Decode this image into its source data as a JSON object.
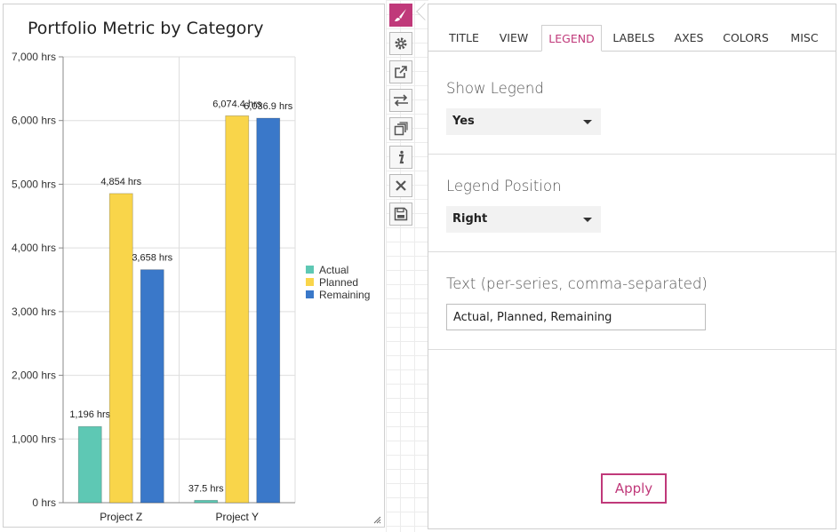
{
  "chart_data": {
    "type": "bar",
    "title": "Portfolio Metric by Category",
    "categories": [
      "Project Z",
      "Project Y"
    ],
    "series": [
      {
        "name": "Actual",
        "color": "#5ec8b4",
        "values": [
          1196,
          37.5
        ],
        "labels": [
          "1,196 hrs",
          "37.5 hrs"
        ]
      },
      {
        "name": "Planned",
        "color": "#f9d54a",
        "values": [
          4854,
          6074.4
        ],
        "labels": [
          "4,854 hrs",
          "6,074.4 hrs"
        ]
      },
      {
        "name": "Remaining",
        "color": "#3a78c9",
        "values": [
          3658,
          6036.9
        ],
        "labels": [
          "3,658 hrs",
          "6,036.9 hrs"
        ]
      }
    ],
    "ylim": [
      0,
      7000
    ],
    "yticks": [
      0,
      1000,
      2000,
      3000,
      4000,
      5000,
      6000,
      7000
    ],
    "ytick_labels": [
      "0 hrs",
      "1,000 hrs",
      "2,000 hrs",
      "3,000 hrs",
      "4,000 hrs",
      "5,000 hrs",
      "6,000 hrs",
      "7,000 hrs"
    ],
    "grid": true,
    "legend_position": "right"
  },
  "toolbar": [
    {
      "name": "style-brush",
      "icon": "paintbrush-icon",
      "active": true
    },
    {
      "name": "settings",
      "icon": "gear-icon",
      "active": false
    },
    {
      "name": "open-external",
      "icon": "external-link-icon",
      "active": false
    },
    {
      "name": "swap",
      "icon": "swap-arrows-icon",
      "active": false
    },
    {
      "name": "duplicate",
      "icon": "copy-icon",
      "active": false
    },
    {
      "name": "info",
      "icon": "info-icon",
      "active": false
    },
    {
      "name": "close",
      "icon": "close-icon",
      "active": false
    },
    {
      "name": "save",
      "icon": "save-icon",
      "active": false
    }
  ],
  "tabs": [
    {
      "label": "TITLE",
      "active": false
    },
    {
      "label": "VIEW",
      "active": false
    },
    {
      "label": "LEGEND",
      "active": true
    },
    {
      "label": "LABELS",
      "active": false
    },
    {
      "label": "AXES",
      "active": false
    },
    {
      "label": "COLORS",
      "active": false
    },
    {
      "label": "MISC",
      "active": false
    }
  ],
  "legend_settings": {
    "show_legend_label": "Show Legend",
    "show_legend_value": "Yes",
    "position_label": "Legend Position",
    "position_value": "Right",
    "text_label": "Text (per-series, comma-separated)",
    "text_value": "Actual, Planned, Remaining"
  },
  "apply_label": "Apply",
  "colors": {
    "accent": "#c0397a"
  }
}
